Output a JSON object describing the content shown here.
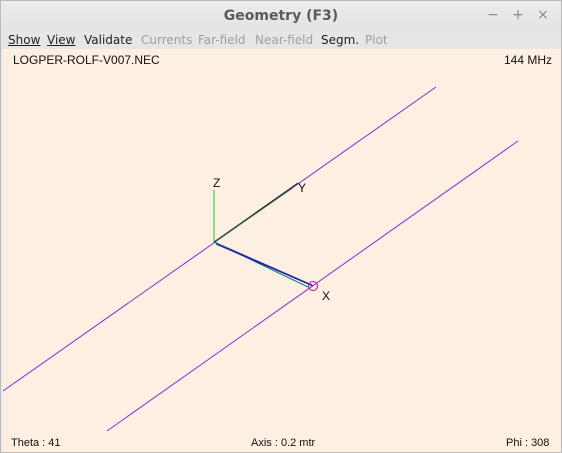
{
  "window": {
    "title": "Geometry  (F3)",
    "controls": {
      "minimize": "−",
      "maximize": "+",
      "close": "×"
    }
  },
  "menu": [
    {
      "label": "Show",
      "enabled": true
    },
    {
      "label": "View",
      "enabled": true
    },
    {
      "label": "Validate",
      "enabled": true
    },
    {
      "label": "Currents",
      "enabled": false
    },
    {
      "label": "Far-field",
      "enabled": false
    },
    {
      "label": "Near-field",
      "enabled": false
    },
    {
      "label": "Segm.",
      "enabled": true
    },
    {
      "label": "Plot",
      "enabled": false
    }
  ],
  "canvas": {
    "filename": "LOGPER-ROLF-V007.NEC",
    "frequency": "144 MHz",
    "theta": "Theta : 41",
    "axis": "Axis : 0.2 mtr",
    "phi": "Phi : 308",
    "axis_labels": {
      "x": "X",
      "y": "Y",
      "z": "Z"
    }
  },
  "colors": {
    "background": "#fdefe1",
    "wire": "#7f2fd6",
    "x_axis": "#2a2acc",
    "y_axis": "#1a1a1a",
    "z_axis": "#22bb22",
    "feed": "#008080",
    "source_marker": "#cc00aa"
  }
}
